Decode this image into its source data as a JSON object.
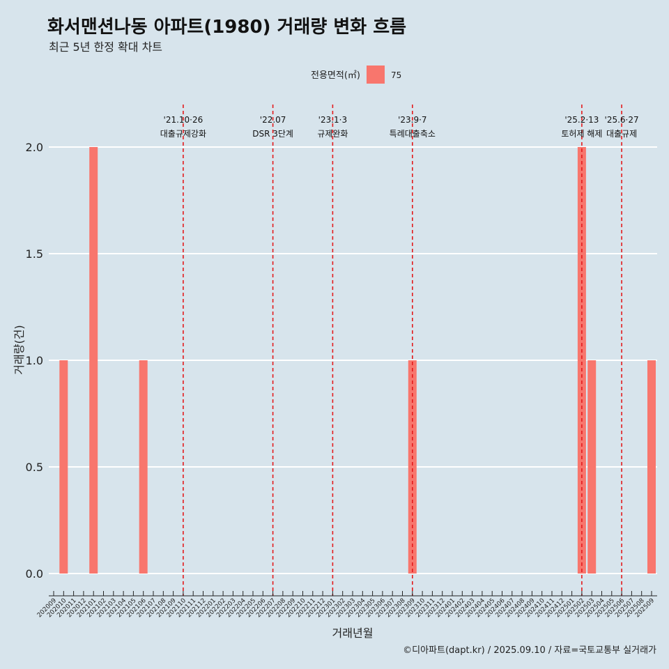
{
  "title": "화서맨션나동 아파트(1980) 거래량 변화 흐름",
  "subtitle": "최근 5년 한정 확대 차트",
  "caption": "©디아파트(dapt.kr) / 2025.09.10 / 자료=국토교통부 실거래가",
  "colors": {
    "bar": "#f8766d",
    "event_line": "#e31a1c",
    "background": "#d7e4ec",
    "grid": "#ffffff"
  },
  "chart_data": {
    "type": "bar",
    "xlabel": "거래년월",
    "ylabel": "거래량(건)",
    "ylim": [
      0,
      2
    ],
    "yticks": [
      0.0,
      0.5,
      1.0,
      1.5,
      2.0
    ],
    "ytick_labels": [
      "0.0",
      "0.5",
      "1.0",
      "1.5",
      "2.0"
    ],
    "legend": {
      "title": "전용면적(㎡)",
      "placement": "top",
      "entries": [
        "75"
      ]
    },
    "categories": [
      "202009",
      "202010",
      "202011",
      "202012",
      "202101",
      "202102",
      "202103",
      "202104",
      "202105",
      "202106",
      "202107",
      "202108",
      "202109",
      "202110",
      "202111",
      "202112",
      "202201",
      "202202",
      "202203",
      "202204",
      "202205",
      "202206",
      "202207",
      "202208",
      "202209",
      "202210",
      "202211",
      "202212",
      "202301",
      "202302",
      "202303",
      "202304",
      "202305",
      "202306",
      "202307",
      "202308",
      "202309",
      "202310",
      "202311",
      "202312",
      "202401",
      "202402",
      "202403",
      "202404",
      "202405",
      "202406",
      "202407",
      "202408",
      "202409",
      "202410",
      "202411",
      "202412",
      "202501",
      "202502",
      "202503",
      "202504",
      "202505",
      "202506",
      "202507",
      "202508",
      "202509"
    ],
    "series": [
      {
        "name": "75",
        "points": [
          {
            "x": "202010",
            "y": 1
          },
          {
            "x": "202101",
            "y": 2
          },
          {
            "x": "202106",
            "y": 1
          },
          {
            "x": "202309",
            "y": 1
          },
          {
            "x": "202502",
            "y": 2
          },
          {
            "x": "202503",
            "y": 1
          },
          {
            "x": "202509",
            "y": 1
          }
        ]
      }
    ],
    "events": [
      {
        "x": "202110",
        "date": "'21.10·26",
        "label": "대출규제강화"
      },
      {
        "x": "202207",
        "date": "'22.07",
        "label": "DSR 3단계"
      },
      {
        "x": "202301",
        "date": "'23.1·3",
        "label": "규제완화"
      },
      {
        "x": "202309",
        "date": "'23.9·7",
        "label": "특례대출축소"
      },
      {
        "x": "202502",
        "date": "'25.2·13",
        "label": "토허제 해제"
      },
      {
        "x": "202506",
        "date": "'25.6·27",
        "label": "대출규제"
      }
    ]
  }
}
